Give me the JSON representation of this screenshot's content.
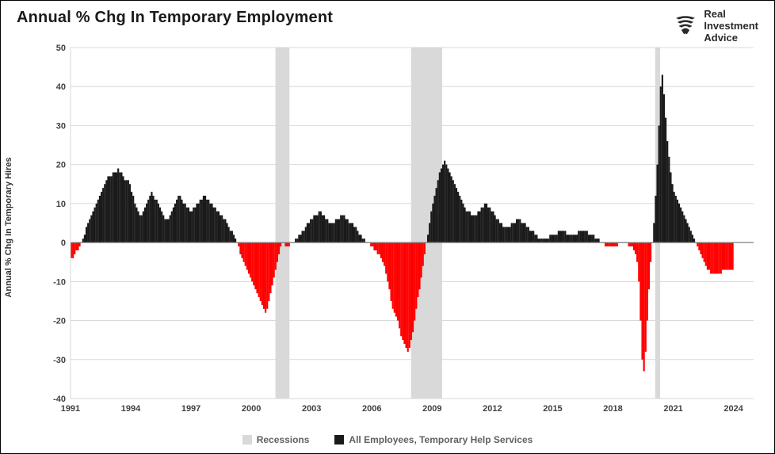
{
  "title": "Annual % Chg In Temporary Employment",
  "logo": {
    "line1": "Real",
    "line2": "Investment",
    "line3": "Advice"
  },
  "y_axis_label": "Annual % Chg In Temporary Hires",
  "chart": {
    "type": "bar",
    "xlim": [
      1991,
      2025
    ],
    "ylim": [
      -40,
      50
    ],
    "ytick_step": 10,
    "yticks": [
      -40,
      -30,
      -20,
      -10,
      0,
      10,
      20,
      30,
      40,
      50
    ],
    "xticks": [
      1991,
      1994,
      1997,
      2000,
      2003,
      2006,
      2009,
      2012,
      2015,
      2018,
      2021,
      2024
    ],
    "grid_color": "#d9d9d9",
    "zero_line_color": "#808080",
    "background_color": "#ffffff",
    "pos_color": "#1a1a1a",
    "neg_color": "#ff0000",
    "recession_color": "#d9d9d9",
    "recessions": [
      {
        "start": 2001.2,
        "end": 2001.9
      },
      {
        "start": 2007.95,
        "end": 2009.5
      },
      {
        "start": 2020.1,
        "end": 2020.35
      }
    ],
    "series": [
      -4,
      -4,
      -3,
      -2,
      -2,
      -1,
      0,
      1,
      2,
      4,
      5,
      6,
      7,
      8,
      9,
      10,
      11,
      12,
      13,
      14,
      15,
      16,
      17,
      17,
      17,
      18,
      18,
      18,
      19,
      18,
      18,
      17,
      16,
      16,
      16,
      15,
      13,
      12,
      10,
      9,
      8,
      7,
      7,
      8,
      9,
      10,
      11,
      12,
      13,
      12,
      11,
      11,
      10,
      9,
      8,
      7,
      6,
      6,
      6,
      7,
      8,
      9,
      10,
      11,
      12,
      12,
      11,
      10,
      10,
      9,
      9,
      8,
      8,
      9,
      9,
      10,
      10,
      11,
      11,
      12,
      12,
      11,
      11,
      10,
      10,
      9,
      9,
      8,
      8,
      7,
      7,
      6,
      6,
      5,
      4,
      3,
      3,
      2,
      1,
      0,
      -1,
      -3,
      -4,
      -5,
      -6,
      -7,
      -8,
      -9,
      -10,
      -11,
      -12,
      -13,
      -14,
      -15,
      -16,
      -17,
      -18,
      -17,
      -15,
      -13,
      -11,
      -9,
      -7,
      -5,
      -3,
      -1,
      0,
      0,
      -1,
      -1,
      -1,
      0,
      0,
      0,
      1,
      1,
      2,
      2,
      3,
      3,
      4,
      5,
      5,
      6,
      6,
      7,
      7,
      7,
      8,
      8,
      7,
      7,
      6,
      6,
      5,
      5,
      5,
      5,
      6,
      6,
      6,
      7,
      7,
      7,
      6,
      6,
      5,
      5,
      5,
      4,
      4,
      3,
      2,
      2,
      1,
      1,
      0,
      0,
      0,
      -1,
      -1,
      -2,
      -2,
      -3,
      -3,
      -4,
      -5,
      -6,
      -8,
      -10,
      -12,
      -15,
      -17,
      -18,
      -19,
      -20,
      -22,
      -24,
      -25,
      -26,
      -27,
      -28,
      -27,
      -25,
      -23,
      -20,
      -17,
      -14,
      -12,
      -9,
      -6,
      -3,
      0,
      2,
      5,
      8,
      10,
      12,
      14,
      16,
      18,
      19,
      20,
      21,
      20,
      19,
      18,
      17,
      16,
      15,
      14,
      13,
      12,
      11,
      10,
      9,
      8,
      8,
      8,
      7,
      7,
      7,
      7,
      8,
      8,
      9,
      9,
      10,
      10,
      9,
      9,
      8,
      8,
      7,
      6,
      6,
      5,
      5,
      4,
      4,
      4,
      4,
      4,
      5,
      5,
      5,
      6,
      6,
      6,
      5,
      5,
      5,
      4,
      4,
      3,
      3,
      3,
      2,
      2,
      1,
      1,
      1,
      1,
      1,
      1,
      1,
      2,
      2,
      2,
      2,
      2,
      3,
      3,
      3,
      3,
      3,
      2,
      2,
      2,
      2,
      2,
      2,
      2,
      3,
      3,
      3,
      3,
      3,
      3,
      2,
      2,
      2,
      2,
      1,
      1,
      1,
      0,
      0,
      0,
      -1,
      -1,
      -1,
      -1,
      -1,
      -1,
      -1,
      -1,
      0,
      0,
      0,
      0,
      0,
      0,
      -1,
      -1,
      -1,
      -2,
      -3,
      -5,
      -10,
      -20,
      -30,
      -33,
      -28,
      -20,
      -12,
      -5,
      0,
      5,
      12,
      20,
      30,
      40,
      43,
      38,
      32,
      26,
      22,
      18,
      15,
      13,
      12,
      11,
      10,
      9,
      8,
      7,
      6,
      5,
      4,
      3,
      2,
      1,
      0,
      -1,
      -2,
      -3,
      -4,
      -5,
      -6,
      -7,
      -7,
      -8,
      -8,
      -8,
      -8,
      -8,
      -8,
      -8,
      -7,
      -7,
      -7,
      -7,
      -7,
      -7,
      -7
    ],
    "series_start_year": 1991,
    "months_per_step": 1
  },
  "legend": {
    "recessions": "Recessions",
    "main": "All Employees, Temporary Help Services"
  }
}
